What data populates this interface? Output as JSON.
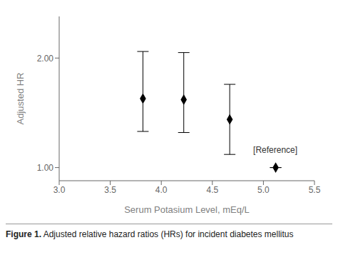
{
  "chart_data": {
    "type": "scatter",
    "x": [
      3.82,
      4.22,
      4.67,
      5.12
    ],
    "values": [
      1.63,
      1.62,
      1.44,
      1.0
    ],
    "error_low": [
      0.3,
      0.3,
      0.32,
      0.0
    ],
    "error_high": [
      0.43,
      0.43,
      0.32,
      0.0
    ],
    "xlim": [
      3.0,
      5.5
    ],
    "ylim": [
      0.88,
      2.38
    ],
    "xticks": [
      {
        "value": 3.0,
        "label": "3.0"
      },
      {
        "value": 3.5,
        "label": "3.5"
      },
      {
        "value": 4.0,
        "label": "4.0"
      },
      {
        "value": 4.5,
        "label": "4.5"
      },
      {
        "value": 5.0,
        "label": "5.0"
      },
      {
        "value": 5.5,
        "label": "5.5"
      }
    ],
    "yticks": [
      {
        "value": 1.0,
        "label": "1.00"
      },
      {
        "value": 2.0,
        "label": "2.00"
      }
    ],
    "xlabel": "Serum Potasium Level, mEq/L",
    "ylabel": "Adjusted HR",
    "annotations": [
      {
        "text": "[Reference]",
        "x": 4.9,
        "y": 1.165
      }
    ],
    "caption": {
      "bold": "Figure 1.",
      "text": "Adjusted relative hazard ratios (HRs) for incident diabetes mellitus"
    },
    "color": "#000000",
    "marker": "diamond",
    "grid": false
  }
}
